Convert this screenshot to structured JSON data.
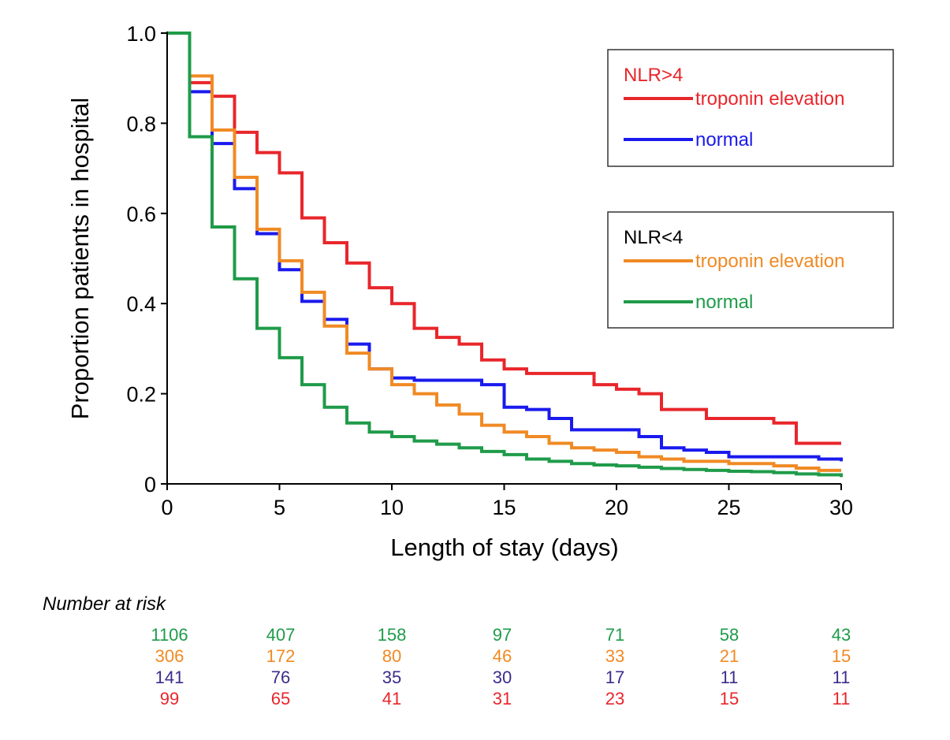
{
  "chart_data": {
    "type": "line",
    "subtype": "kaplan-meier-step",
    "xlabel": "Length of stay (days)",
    "ylabel": "Proportion patients in hospital",
    "xlim": [
      0,
      30
    ],
    "ylim": [
      0,
      1.0
    ],
    "x_ticks": [
      "0",
      "5",
      "10",
      "15",
      "20",
      "25",
      "30"
    ],
    "y_ticks": [
      "0",
      "0.2",
      "0.4",
      "0.6",
      "0.8",
      "1.0"
    ],
    "grid": false,
    "legend": {
      "placement": "top-right",
      "groups": [
        {
          "title": "NLR>4",
          "title_color": "#e8262b",
          "entries": [
            {
              "label": "troponin elevation",
              "series": 0
            },
            {
              "label": "normal",
              "series": 1
            }
          ]
        },
        {
          "title": "NLR<4",
          "title_color": "#000000",
          "entries": [
            {
              "label": "troponin elevation",
              "series": 2
            },
            {
              "label": "normal",
              "series": 3
            }
          ]
        }
      ]
    },
    "series": [
      {
        "color": "#e8262b",
        "x": [
          0,
          1,
          2,
          3,
          4,
          5,
          6,
          7,
          8,
          9,
          10,
          11,
          12,
          13,
          14,
          15,
          16,
          18,
          19,
          20,
          21,
          22,
          23,
          24,
          25,
          26,
          27,
          28,
          29,
          30
        ],
        "values": [
          1.0,
          0.89,
          0.86,
          0.78,
          0.735,
          0.69,
          0.59,
          0.535,
          0.49,
          0.435,
          0.4,
          0.345,
          0.325,
          0.31,
          0.275,
          0.255,
          0.245,
          0.245,
          0.22,
          0.21,
          0.2,
          0.165,
          0.165,
          0.145,
          0.145,
          0.145,
          0.135,
          0.09,
          0.09,
          0.09
        ]
      },
      {
        "color": "#1a1aee",
        "x": [
          0,
          1,
          2,
          3,
          4,
          5,
          6,
          7,
          8,
          9,
          10,
          11,
          12,
          13,
          14,
          15,
          16,
          17,
          18,
          19,
          20,
          21,
          22,
          23,
          24,
          25,
          26,
          27,
          28,
          29,
          30
        ],
        "values": [
          1.0,
          0.87,
          0.755,
          0.655,
          0.555,
          0.475,
          0.405,
          0.365,
          0.31,
          0.255,
          0.235,
          0.23,
          0.23,
          0.23,
          0.22,
          0.17,
          0.165,
          0.145,
          0.12,
          0.12,
          0.12,
          0.105,
          0.08,
          0.075,
          0.07,
          0.06,
          0.06,
          0.06,
          0.06,
          0.055,
          0.05
        ]
      },
      {
        "color": "#f08a24",
        "x": [
          0,
          1,
          2,
          3,
          4,
          5,
          6,
          7,
          8,
          9,
          10,
          11,
          12,
          13,
          14,
          15,
          16,
          17,
          18,
          19,
          20,
          21,
          22,
          23,
          24,
          25,
          26,
          27,
          28,
          29,
          30
        ],
        "values": [
          1.0,
          0.905,
          0.785,
          0.68,
          0.565,
          0.495,
          0.425,
          0.35,
          0.29,
          0.255,
          0.22,
          0.2,
          0.175,
          0.155,
          0.13,
          0.115,
          0.105,
          0.09,
          0.08,
          0.075,
          0.07,
          0.06,
          0.055,
          0.05,
          0.05,
          0.045,
          0.045,
          0.04,
          0.035,
          0.03,
          0.03
        ]
      },
      {
        "color": "#1f9b4a",
        "x": [
          0,
          1,
          2,
          3,
          4,
          5,
          6,
          7,
          8,
          9,
          10,
          11,
          12,
          13,
          14,
          15,
          16,
          17,
          18,
          19,
          20,
          21,
          22,
          23,
          24,
          25,
          26,
          27,
          28,
          29,
          30
        ],
        "values": [
          1.0,
          0.77,
          0.57,
          0.455,
          0.345,
          0.28,
          0.22,
          0.17,
          0.135,
          0.115,
          0.105,
          0.095,
          0.088,
          0.08,
          0.072,
          0.065,
          0.055,
          0.05,
          0.045,
          0.042,
          0.04,
          0.037,
          0.034,
          0.032,
          0.03,
          0.028,
          0.027,
          0.025,
          0.022,
          0.02,
          0.015
        ]
      }
    ],
    "number_at_risk": {
      "title": "Number at risk",
      "rows": [
        {
          "color": "#1f9b4a",
          "values": [
            "1106",
            "407",
            "158",
            "97",
            "71",
            "58",
            "43"
          ]
        },
        {
          "color": "#f08a24",
          "values": [
            "306",
            "172",
            "80",
            "46",
            "33",
            "21",
            "15"
          ]
        },
        {
          "color": "#3b2d8c",
          "values": [
            "141",
            "76",
            "35",
            "30",
            "17",
            "11",
            "11"
          ]
        },
        {
          "color": "#e8262b",
          "values": [
            "99",
            "65",
            "41",
            "31",
            "23",
            "15",
            "11"
          ]
        }
      ]
    }
  }
}
